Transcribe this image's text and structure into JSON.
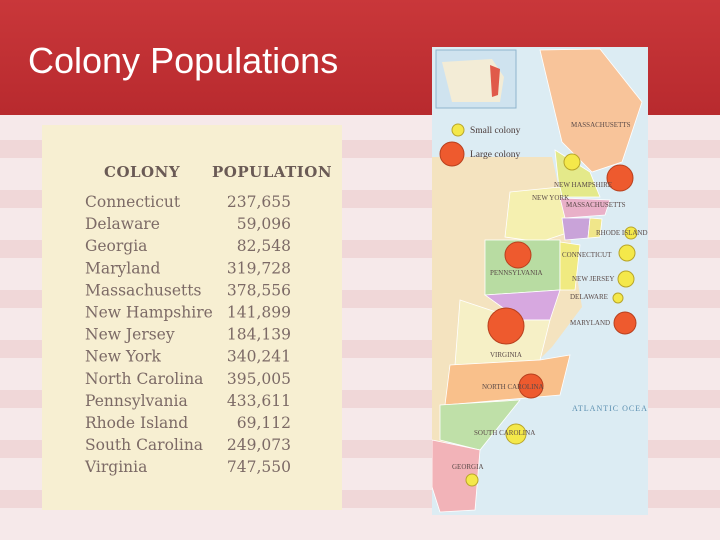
{
  "header": {
    "title": "Colony Populations"
  },
  "table": {
    "columns": [
      "COLONY",
      "POPULATION"
    ],
    "rows": [
      [
        "Connecticut",
        "237,655"
      ],
      [
        "Delaware",
        "59,096"
      ],
      [
        "Georgia",
        "82,548"
      ],
      [
        "Maryland",
        "319,728"
      ],
      [
        "Massachusetts",
        "378,556"
      ],
      [
        "New Hampshire",
        "141,899"
      ],
      [
        "New Jersey",
        "184,139"
      ],
      [
        "New York",
        "340,241"
      ],
      [
        "North Carolina",
        "395,005"
      ],
      [
        "Pennsylvania",
        "433,611"
      ],
      [
        "Rhode Island",
        "69,112"
      ],
      [
        "South Carolina",
        "249,073"
      ],
      [
        "Virginia",
        "747,550"
      ]
    ]
  },
  "map": {
    "legend": [
      "Small colony",
      "Large colony"
    ],
    "labels": [
      "MASSACHUSETTS",
      "NEW HAMPSHIRE",
      "NEW YORK",
      "MASSACHUSETTS",
      "RHODE ISLAND",
      "CONNECTICUT",
      "PENNSYLVANIA",
      "NEW JERSEY",
      "DELAWARE",
      "MARYLAND",
      "VIRGINIA",
      "NORTH CAROLINA",
      "SOUTH CAROLINA",
      "GEORGIA",
      "ATLANTIC OCEAN"
    ]
  }
}
